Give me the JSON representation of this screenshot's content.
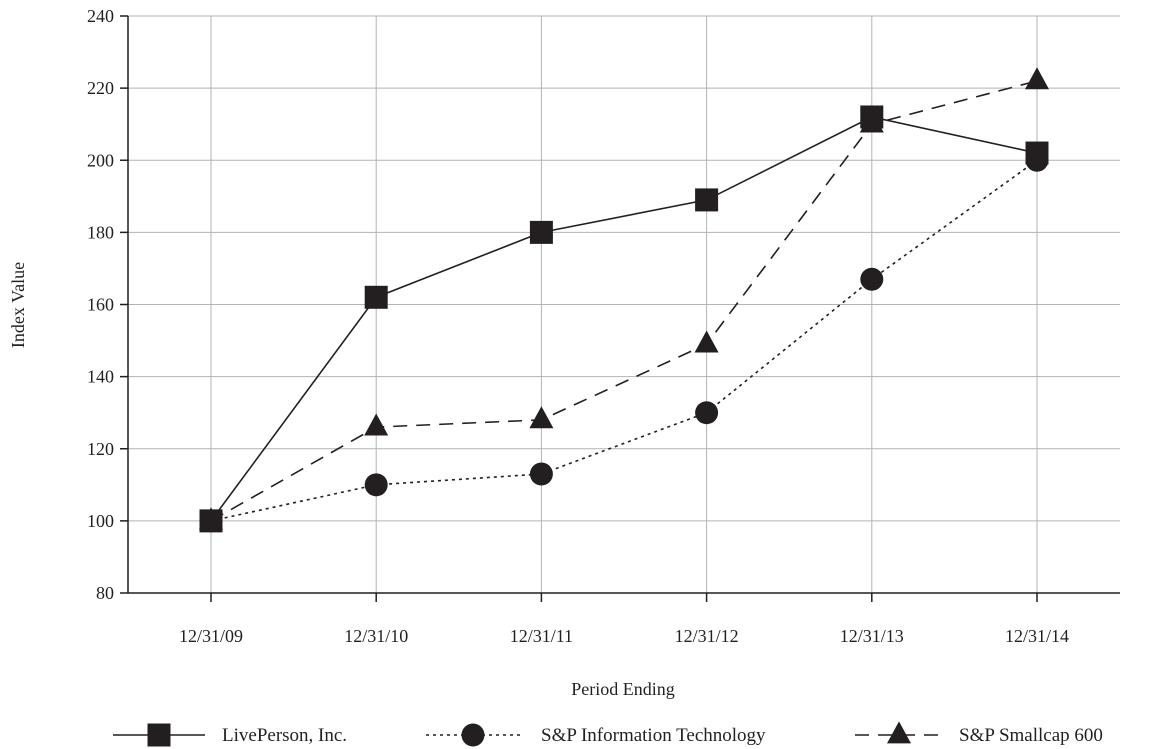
{
  "chart_data": {
    "type": "line",
    "title": "",
    "xlabel": "Period Ending",
    "ylabel": "Index Value",
    "categories": [
      "12/31/09",
      "12/31/10",
      "12/31/11",
      "12/31/12",
      "12/31/13",
      "12/31/14"
    ],
    "ylim": [
      80,
      240
    ],
    "yticks": [
      80,
      100,
      120,
      140,
      160,
      180,
      200,
      220,
      240
    ],
    "grid": true,
    "legend_position": "bottom",
    "series": [
      {
        "name": "LivePerson, Inc.",
        "marker": "square",
        "line_style": "solid",
        "values": [
          100,
          162,
          180,
          189,
          212,
          202
        ]
      },
      {
        "name": "S&P Information Technology",
        "marker": "circle",
        "line_style": "dotted",
        "values": [
          100,
          110,
          113,
          130,
          167,
          200
        ]
      },
      {
        "name": "S&P Smallcap 600",
        "marker": "triangle",
        "line_style": "dashed",
        "values": [
          100,
          126,
          128,
          149,
          210,
          222
        ]
      }
    ]
  }
}
